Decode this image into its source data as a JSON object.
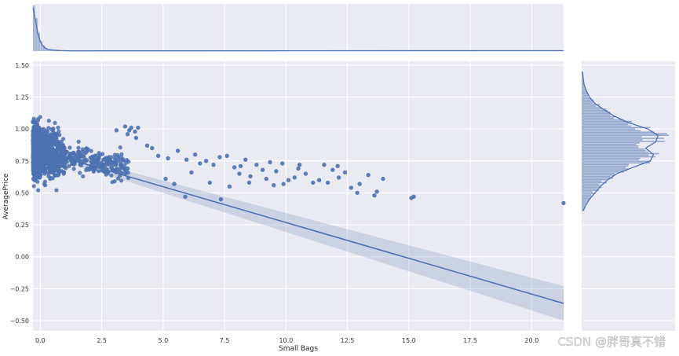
{
  "chart_data": {
    "type": "scatter",
    "title": "",
    "xlabel": "Small Bags",
    "ylabel": "AveragePrice",
    "xlim": [
      -0.3,
      21.3
    ],
    "ylim": [
      -0.58,
      1.53
    ],
    "xticks": [
      0.0,
      2.5,
      5.0,
      7.5,
      10.0,
      12.5,
      15.0,
      17.5,
      20.0
    ],
    "xtick_labels": [
      "0.0",
      "2.5",
      "5.0",
      "7.5",
      "10.0",
      "12.5",
      "15.0",
      "17.5",
      "20.0"
    ],
    "yticks": [
      -0.5,
      -0.25,
      0.0,
      0.25,
      0.5,
      0.75,
      1.0,
      1.25,
      1.5
    ],
    "ytick_labels": [
      "−0.50",
      "−0.25",
      "0.00",
      "0.25",
      "0.50",
      "0.75",
      "1.00",
      "1.25",
      "1.50"
    ],
    "grid": true,
    "point_color": "#4c72b0",
    "background_color": "#eaeaf2",
    "regression": {
      "x": [
        -0.3,
        21.3
      ],
      "y": [
        0.845,
        -0.365
      ],
      "ci_low": [
        0.825,
        -0.5
      ],
      "ci_high": [
        0.865,
        -0.23
      ]
    },
    "points": [
      [
        3.45,
        1.02
      ],
      [
        3.55,
        0.96
      ],
      [
        3.62,
        0.99
      ],
      [
        3.7,
        1.01
      ],
      [
        3.85,
        0.98
      ],
      [
        3.98,
        1.01
      ],
      [
        3.1,
        0.99
      ],
      [
        3.9,
        0.93
      ],
      [
        4.35,
        0.87
      ],
      [
        4.55,
        0.85
      ],
      [
        4.8,
        0.79
      ],
      [
        5.2,
        0.77
      ],
      [
        5.6,
        0.83
      ],
      [
        5.95,
        0.76
      ],
      [
        6.3,
        0.8
      ],
      [
        6.5,
        0.73
      ],
      [
        6.75,
        0.75
      ],
      [
        7.05,
        0.72
      ],
      [
        7.3,
        0.78
      ],
      [
        7.6,
        0.79
      ],
      [
        7.9,
        0.7
      ],
      [
        8.1,
        0.65
      ],
      [
        8.35,
        0.76
      ],
      [
        8.55,
        0.63
      ],
      [
        8.8,
        0.72
      ],
      [
        9.05,
        0.68
      ],
      [
        9.35,
        0.74
      ],
      [
        9.6,
        0.67
      ],
      [
        9.85,
        0.73
      ],
      [
        10.1,
        0.6
      ],
      [
        10.35,
        0.62
      ],
      [
        10.55,
        0.72
      ],
      [
        10.8,
        0.65
      ],
      [
        11.1,
        0.58
      ],
      [
        11.35,
        0.6
      ],
      [
        11.55,
        0.72
      ],
      [
        11.9,
        0.68
      ],
      [
        12.15,
        0.62
      ],
      [
        12.4,
        0.66
      ],
      [
        12.65,
        0.54
      ],
      [
        13.0,
        0.57
      ],
      [
        13.35,
        0.64
      ],
      [
        13.7,
        0.51
      ],
      [
        13.95,
        0.61
      ],
      [
        6.9,
        0.58
      ],
      [
        8.5,
        0.58
      ],
      [
        9.9,
        0.57
      ],
      [
        5.9,
        0.47
      ],
      [
        7.35,
        0.45
      ],
      [
        12.9,
        0.5
      ],
      [
        13.6,
        0.48
      ],
      [
        15.1,
        0.46
      ],
      [
        15.2,
        0.47
      ],
      [
        21.3,
        0.42
      ],
      [
        5.1,
        0.61
      ],
      [
        5.45,
        0.57
      ],
      [
        6.15,
        0.66
      ],
      [
        7.7,
        0.55
      ],
      [
        9.2,
        0.61
      ],
      [
        10.5,
        0.69
      ],
      [
        11.7,
        0.58
      ],
      [
        12.1,
        0.71
      ],
      [
        8.15,
        0.71
      ],
      [
        9.5,
        0.56
      ]
    ],
    "top_marginal": {
      "type": "histogram+kde",
      "bins_x": [
        -0.3,
        -0.2,
        -0.1,
        0.0,
        0.1,
        0.2,
        0.3,
        0.5,
        0.8,
        1.2
      ],
      "density": [
        1.0,
        0.72,
        0.4,
        0.22,
        0.12,
        0.07,
        0.04,
        0.025,
        0.012,
        0.005
      ]
    },
    "right_marginal": {
      "type": "histogram+kde",
      "y": [
        0.36,
        0.4,
        0.45,
        0.5,
        0.55,
        0.6,
        0.65,
        0.7,
        0.75,
        0.8,
        0.85,
        0.9,
        0.95,
        1.0,
        1.05,
        1.1,
        1.15,
        1.2,
        1.25,
        1.3,
        1.35,
        1.4,
        1.45
      ],
      "density": [
        0.02,
        0.05,
        0.1,
        0.17,
        0.24,
        0.33,
        0.45,
        0.66,
        0.88,
        0.92,
        0.82,
        0.95,
        0.98,
        0.85,
        0.6,
        0.42,
        0.29,
        0.17,
        0.1,
        0.06,
        0.03,
        0.02,
        0.01
      ]
    }
  },
  "watermark": "CSDN @胖哥真不错"
}
